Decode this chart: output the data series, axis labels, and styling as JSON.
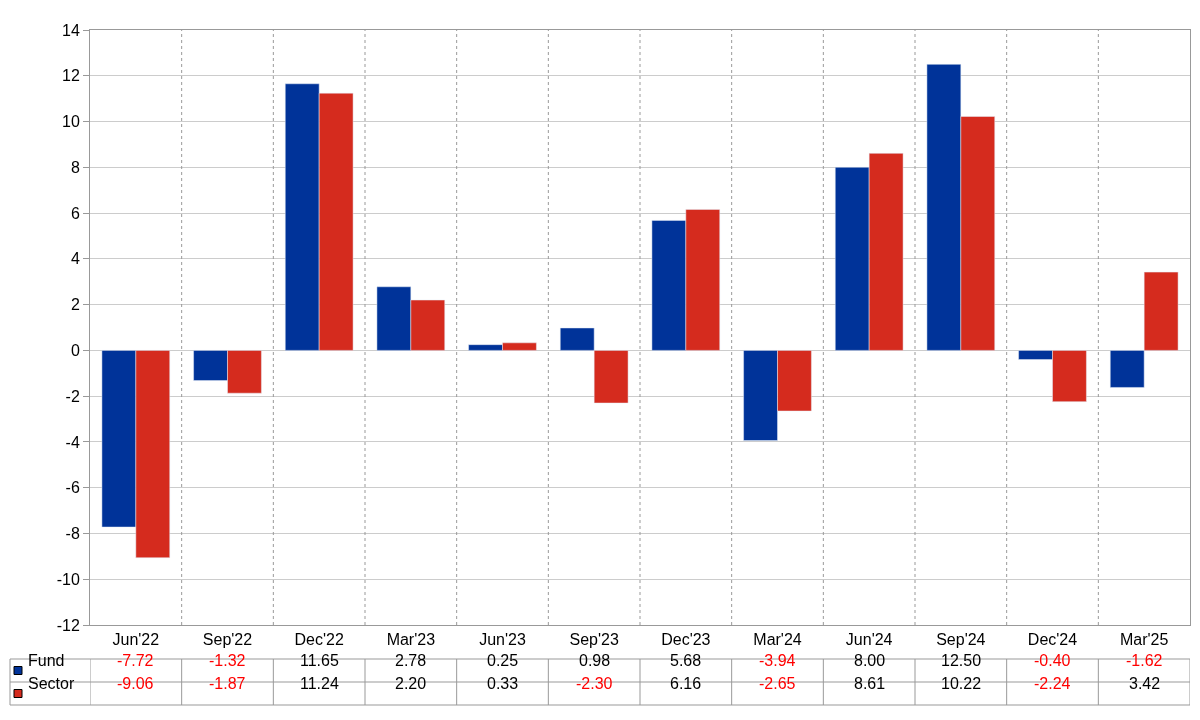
{
  "chart_data": {
    "type": "bar",
    "categories": [
      "Jun'22",
      "Sep'22",
      "Dec'22",
      "Mar'23",
      "Jun'23",
      "Sep'23",
      "Dec'23",
      "Mar'24",
      "Jun'24",
      "Sep'24",
      "Dec'24",
      "Mar'25"
    ],
    "series": [
      {
        "name": "Fund",
        "color": "#003399",
        "values": [
          -7.72,
          -1.32,
          11.65,
          2.78,
          0.25,
          0.98,
          5.68,
          -3.94,
          8.0,
          12.5,
          -0.4,
          -1.62
        ],
        "value_labels": [
          "-7.72",
          "-1.32",
          "11.65",
          "2.78",
          "0.25",
          "0.98",
          "5.68",
          "-3.94",
          "8.00",
          "12.50",
          "-0.40",
          "-1.62"
        ]
      },
      {
        "name": "Sector",
        "color": "#d52b1e",
        "values": [
          -9.06,
          -1.87,
          11.24,
          2.2,
          0.33,
          -2.3,
          6.16,
          -2.65,
          8.61,
          10.22,
          -2.24,
          3.42
        ],
        "value_labels": [
          "-9.06",
          "-1.87",
          "11.24",
          "2.20",
          "0.33",
          "-2.30",
          "6.16",
          "-2.65",
          "8.61",
          "10.22",
          "-2.24",
          "3.42"
        ]
      }
    ],
    "ylim": [
      -12,
      14
    ],
    "yticks": [
      -12,
      -10,
      -8,
      -6,
      -4,
      -2,
      0,
      2,
      4,
      6,
      8,
      10,
      12,
      14
    ],
    "grid": true,
    "legend": "bottom"
  }
}
